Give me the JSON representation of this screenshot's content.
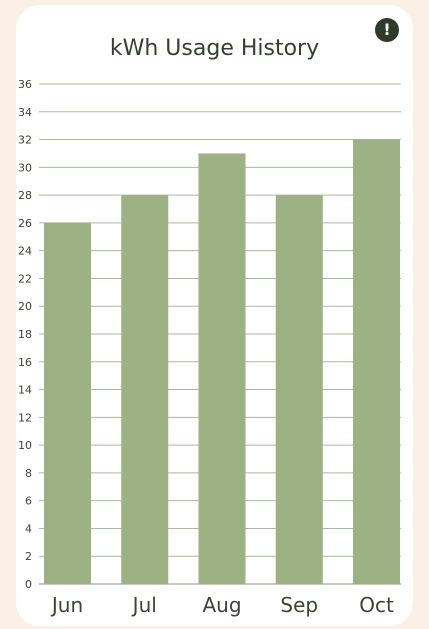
{
  "header": {
    "alert_icon": "alert-circle-icon",
    "alert_glyph": "!"
  },
  "colors": {
    "bar": "#9db283",
    "grid": "#a9bd97",
    "axis": "#8a9a80",
    "alert": "#2e3b29"
  },
  "chart_data": {
    "type": "bar",
    "title": "kWh Usage History",
    "categories": [
      "Jun",
      "Jul",
      "Aug",
      "Sep",
      "Oct"
    ],
    "values": [
      26,
      28,
      31,
      28,
      32
    ],
    "xlabel": "",
    "ylabel": "",
    "ylim": [
      0,
      36
    ],
    "ytick_step": 2,
    "grid": true
  }
}
